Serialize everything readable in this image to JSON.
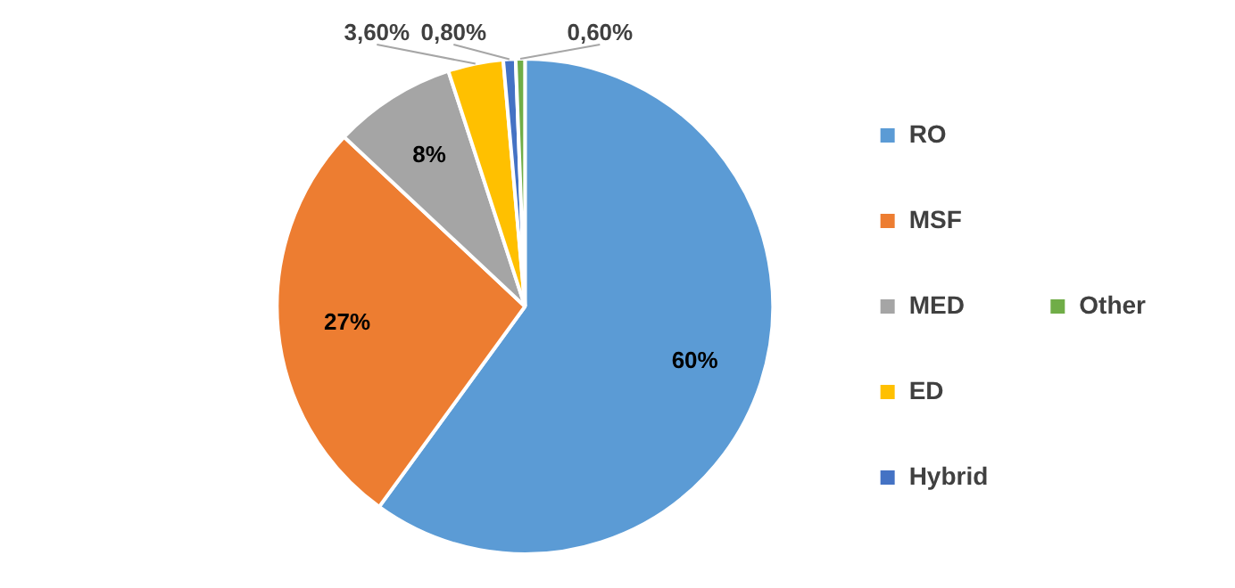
{
  "chart_data": {
    "type": "pie",
    "categories": [
      "RO",
      "MSF",
      "MED",
      "ED",
      "Hybrid",
      "Other"
    ],
    "values": [
      60,
      27,
      8,
      3.6,
      0.8,
      0.6
    ],
    "value_labels": [
      "60%",
      "27%",
      "8%",
      "3,60%",
      "0,80%",
      "0,60%"
    ],
    "colors": [
      "#5b9bd5",
      "#ed7d31",
      "#a5a5a5",
      "#ffc000",
      "#4472c4",
      "#70ad47"
    ],
    "legend": "right"
  }
}
